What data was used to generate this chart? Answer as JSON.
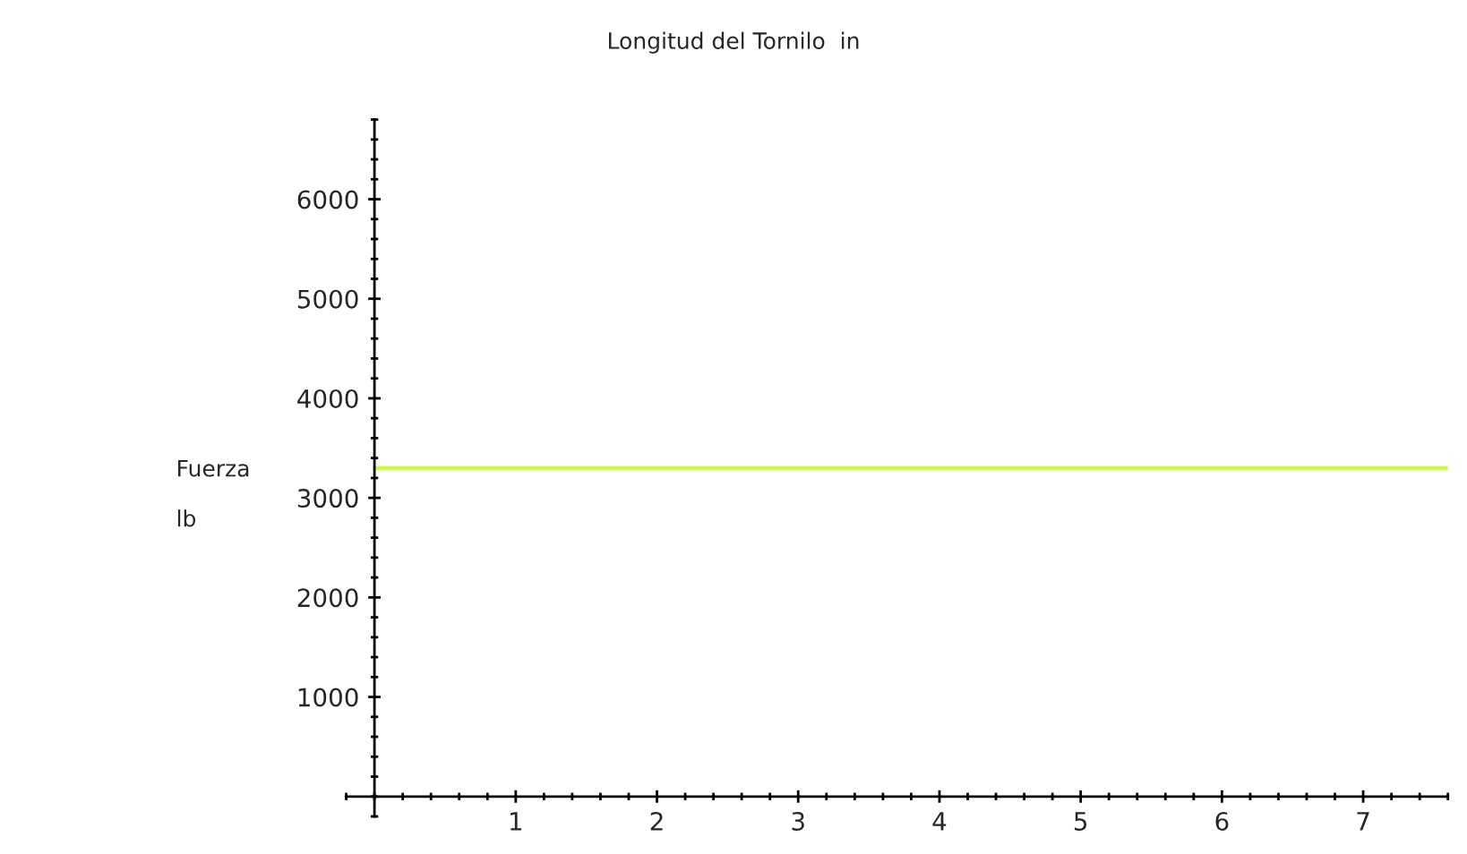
{
  "chart_data": {
    "type": "line",
    "title": "Longitud del Tornilo  in",
    "ylabel": "Fuerza\n\nlb",
    "series": [
      {
        "color": "#ccff33",
        "x": [
          0,
          7.6
        ],
        "values": [
          3300,
          3300
        ]
      }
    ],
    "xlim": [
      -0.2,
      7.6
    ],
    "ylim": [
      -200,
      6800
    ],
    "xticks": [
      1,
      2,
      3,
      4,
      5,
      6,
      7
    ],
    "yticks": [
      1000,
      2000,
      3000,
      4000,
      5000,
      6000
    ],
    "grid": false,
    "legend": false
  }
}
